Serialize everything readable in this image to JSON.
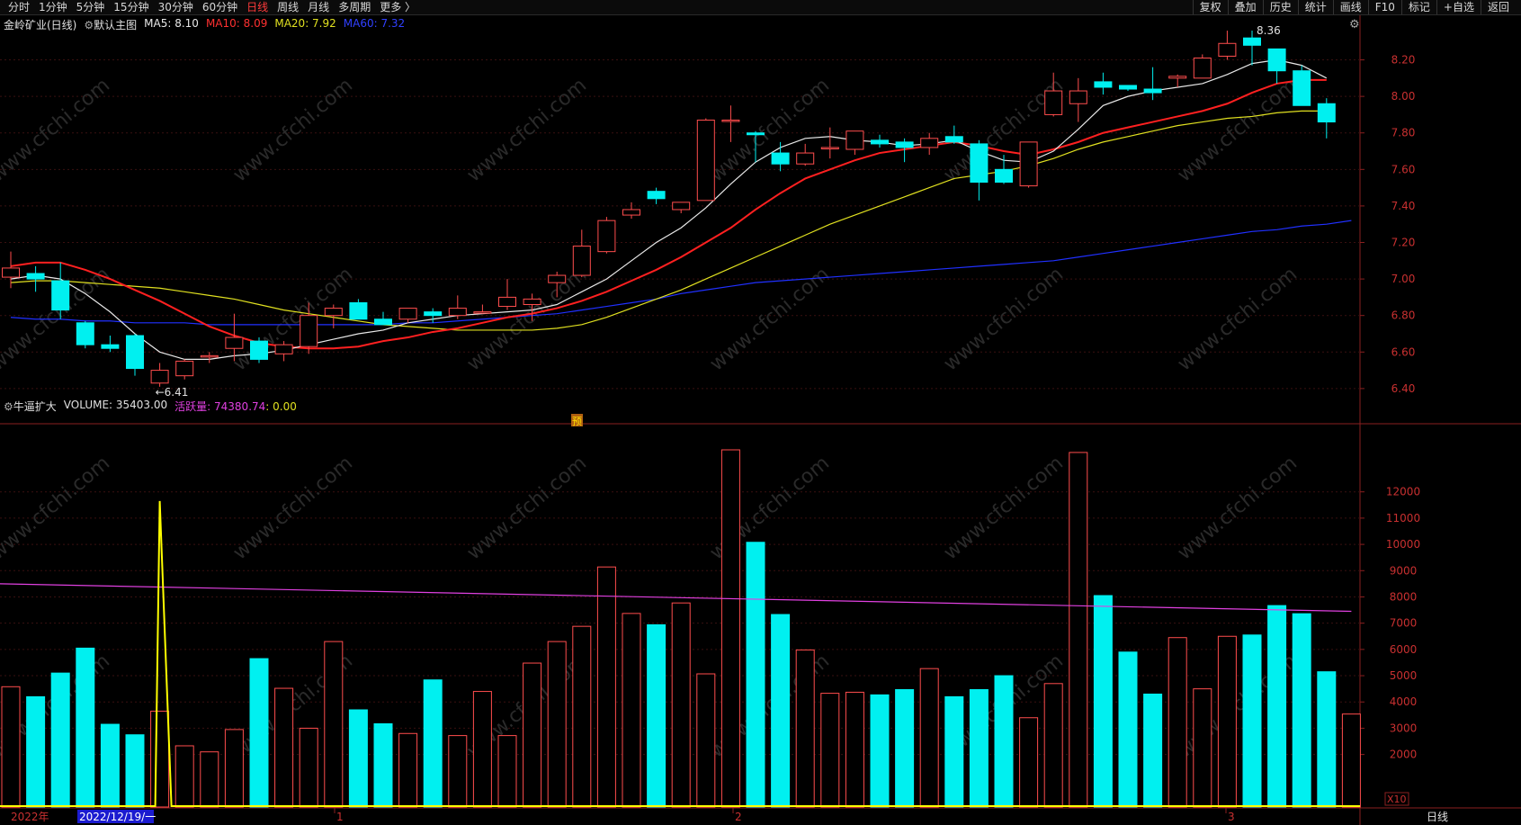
{
  "toolbar": {
    "left_items": [
      "分时",
      "1分钟",
      "5分钟",
      "15分钟",
      "30分钟",
      "60分钟",
      "日线",
      "周线",
      "月线",
      "多周期",
      "更多 〉"
    ],
    "active_index": 6,
    "right_items": [
      "复权",
      "叠加",
      "历史",
      "统计",
      "画线",
      "F10",
      "标记",
      "+自选",
      "返回"
    ]
  },
  "main_legend": {
    "stock": "金岭矿业(日线)",
    "template": "默认主图",
    "ma5": "MA5: 8.10",
    "ma10": "MA10: 8.09",
    "ma20": "MA20: 7.92",
    "ma60": "MA60: 7.32"
  },
  "vol_legend": {
    "indicator": "牛逼扩大",
    "volume": "VOLUME: 35403.00",
    "active": "活跃量: 74380.74",
    "extra": ": 0.00"
  },
  "colors": {
    "up": "#ff4d4d",
    "down": "#00f0f0",
    "ma5": "#e8e8e8",
    "ma10": "#ff2020",
    "ma20": "#e0e020",
    "ma60": "#2030ff",
    "active": "#e040e0",
    "signal": "#ffff00"
  },
  "price_axis": [
    "8.20",
    "8.00",
    "7.80",
    "7.60",
    "7.40",
    "7.20",
    "7.00",
    "6.80",
    "6.60",
    "6.40"
  ],
  "vol_axis": [
    "12000",
    "11000",
    "10000",
    "9000",
    "8000",
    "7000",
    "6000",
    "5000",
    "4000",
    "3000",
    "2000"
  ],
  "vol_unit": "X10",
  "date_labels": {
    "year": "2022年",
    "cursor": "2022/12/19/一",
    "m1": "1",
    "m2": "2",
    "m3": "3"
  },
  "period_label": "日线",
  "annotations": {
    "low": "←6.41",
    "high": "8.36",
    "marker": "预"
  },
  "watermark": "www.cfchi.com",
  "chart_data": {
    "type": "candlestick",
    "candles": [
      {
        "o": 7.01,
        "h": 7.15,
        "l": 6.95,
        "c": 7.06
      },
      {
        "o": 7.03,
        "h": 7.07,
        "l": 6.93,
        "c": 7.0
      },
      {
        "o": 6.99,
        "h": 7.09,
        "l": 6.78,
        "c": 6.83
      },
      {
        "o": 6.76,
        "h": 6.77,
        "l": 6.62,
        "c": 6.64
      },
      {
        "o": 6.64,
        "h": 6.69,
        "l": 6.6,
        "c": 6.62
      },
      {
        "o": 6.69,
        "h": 6.7,
        "l": 6.47,
        "c": 6.51
      },
      {
        "o": 6.43,
        "h": 6.54,
        "l": 6.41,
        "c": 6.5
      },
      {
        "o": 6.47,
        "h": 6.56,
        "l": 6.45,
        "c": 6.55
      },
      {
        "o": 6.58,
        "h": 6.6,
        "l": 6.54,
        "c": 6.58
      },
      {
        "o": 6.62,
        "h": 6.81,
        "l": 6.55,
        "c": 6.68
      },
      {
        "o": 6.66,
        "h": 6.68,
        "l": 6.54,
        "c": 6.56
      },
      {
        "o": 6.59,
        "h": 6.66,
        "l": 6.55,
        "c": 6.64
      },
      {
        "o": 6.63,
        "h": 6.87,
        "l": 6.59,
        "c": 6.8
      },
      {
        "o": 6.8,
        "h": 6.86,
        "l": 6.73,
        "c": 6.84
      },
      {
        "o": 6.87,
        "h": 6.89,
        "l": 6.78,
        "c": 6.78
      },
      {
        "o": 6.78,
        "h": 6.82,
        "l": 6.75,
        "c": 6.75
      },
      {
        "o": 6.78,
        "h": 6.84,
        "l": 6.76,
        "c": 6.84
      },
      {
        "o": 6.82,
        "h": 6.84,
        "l": 6.76,
        "c": 6.8
      },
      {
        "o": 6.8,
        "h": 6.91,
        "l": 6.78,
        "c": 6.84
      },
      {
        "o": 6.82,
        "h": 6.86,
        "l": 6.81,
        "c": 6.82
      },
      {
        "o": 6.85,
        "h": 7.0,
        "l": 6.83,
        "c": 6.9
      },
      {
        "o": 6.86,
        "h": 6.92,
        "l": 6.77,
        "c": 6.89
      },
      {
        "o": 6.98,
        "h": 7.04,
        "l": 6.9,
        "c": 7.02
      },
      {
        "o": 7.02,
        "h": 7.27,
        "l": 7.01,
        "c": 7.18
      },
      {
        "o": 7.15,
        "h": 7.34,
        "l": 7.14,
        "c": 7.32
      },
      {
        "o": 7.35,
        "h": 7.42,
        "l": 7.33,
        "c": 7.38
      },
      {
        "o": 7.48,
        "h": 7.5,
        "l": 7.41,
        "c": 7.44
      },
      {
        "o": 7.38,
        "h": 7.42,
        "l": 7.36,
        "c": 7.42
      },
      {
        "o": 7.43,
        "h": 7.88,
        "l": 7.43,
        "c": 7.87
      },
      {
        "o": 7.87,
        "h": 7.95,
        "l": 7.75,
        "c": 7.87
      },
      {
        "o": 7.8,
        "h": 7.81,
        "l": 7.64,
        "c": 7.79
      },
      {
        "o": 7.69,
        "h": 7.75,
        "l": 7.59,
        "c": 7.63
      },
      {
        "o": 7.63,
        "h": 7.74,
        "l": 7.62,
        "c": 7.69
      },
      {
        "o": 7.72,
        "h": 7.83,
        "l": 7.66,
        "c": 7.72
      },
      {
        "o": 7.71,
        "h": 7.81,
        "l": 7.68,
        "c": 7.81
      },
      {
        "o": 7.76,
        "h": 7.79,
        "l": 7.72,
        "c": 7.74
      },
      {
        "o": 7.75,
        "h": 7.77,
        "l": 7.64,
        "c": 7.72
      },
      {
        "o": 7.72,
        "h": 7.8,
        "l": 7.68,
        "c": 7.77
      },
      {
        "o": 7.78,
        "h": 7.84,
        "l": 7.74,
        "c": 7.75
      },
      {
        "o": 7.74,
        "h": 7.76,
        "l": 7.43,
        "c": 7.53
      },
      {
        "o": 7.6,
        "h": 7.68,
        "l": 7.52,
        "c": 7.53
      },
      {
        "o": 7.51,
        "h": 7.75,
        "l": 7.5,
        "c": 7.75
      },
      {
        "o": 7.9,
        "h": 8.13,
        "l": 7.89,
        "c": 8.03
      },
      {
        "o": 7.96,
        "h": 8.1,
        "l": 7.86,
        "c": 8.03
      },
      {
        "o": 8.08,
        "h": 8.13,
        "l": 8.01,
        "c": 8.05
      },
      {
        "o": 8.06,
        "h": 8.06,
        "l": 8.03,
        "c": 8.04
      },
      {
        "o": 8.04,
        "h": 8.16,
        "l": 7.98,
        "c": 8.02
      },
      {
        "o": 8.1,
        "h": 8.12,
        "l": 8.05,
        "c": 8.11
      },
      {
        "o": 8.1,
        "h": 8.23,
        "l": 8.1,
        "c": 8.21
      },
      {
        "o": 8.22,
        "h": 8.36,
        "l": 8.2,
        "c": 8.29
      },
      {
        "o": 8.32,
        "h": 8.36,
        "l": 8.17,
        "c": 8.28
      },
      {
        "o": 8.26,
        "h": 8.26,
        "l": 8.07,
        "c": 8.14
      },
      {
        "o": 8.14,
        "h": 8.17,
        "l": 7.96,
        "c": 7.95
      },
      {
        "o": 7.96,
        "h": 7.99,
        "l": 7.77,
        "c": 7.86
      }
    ],
    "volumes": [
      4580,
      4200,
      5100,
      6050,
      3150,
      2750,
      3650,
      2330,
      2100,
      2950,
      5650,
      4520,
      3000,
      6300,
      3700,
      3170,
      2800,
      4840,
      2720,
      4400,
      2720,
      5480,
      6300,
      6880,
      9140,
      7370,
      6940,
      7770,
      5070,
      13600,
      10080,
      7330,
      5980,
      4330,
      4370,
      4270,
      4470,
      5270,
      4200,
      4470,
      5000,
      3400,
      4700,
      13500,
      8050,
      5900,
      4300,
      6450,
      4500,
      6500,
      6550,
      7670,
      7360,
      5150,
      3540
    ],
    "active_line": [
      8500,
      7450
    ],
    "signal_peak": {
      "index": 7,
      "value": 11650
    },
    "ma5": [
      7.0,
      7.02,
      7.0,
      6.92,
      6.82,
      6.7,
      6.6,
      6.56,
      6.56,
      6.58,
      6.59,
      6.61,
      6.64,
      6.67,
      6.7,
      6.72,
      6.76,
      6.78,
      6.8,
      6.81,
      6.82,
      6.83,
      6.86,
      6.93,
      7.0,
      7.1,
      7.2,
      7.28,
      7.39,
      7.52,
      7.64,
      7.72,
      7.77,
      7.78,
      7.76,
      7.75,
      7.73,
      7.74,
      7.76,
      7.7,
      7.65,
      7.64,
      7.7,
      7.82,
      7.95,
      8.0,
      8.03,
      8.05,
      8.07,
      8.12,
      8.18,
      8.2,
      8.17,
      8.1
    ],
    "ma10": [
      7.07,
      7.09,
      7.09,
      7.05,
      7.0,
      6.94,
      6.88,
      6.81,
      6.74,
      6.69,
      6.65,
      6.63,
      6.62,
      6.62,
      6.63,
      6.66,
      6.68,
      6.71,
      6.73,
      6.76,
      6.79,
      6.81,
      6.84,
      6.88,
      6.93,
      6.99,
      7.05,
      7.12,
      7.2,
      7.28,
      7.38,
      7.47,
      7.55,
      7.6,
      7.65,
      7.69,
      7.71,
      7.73,
      7.75,
      7.73,
      7.7,
      7.68,
      7.71,
      7.75,
      7.8,
      7.83,
      7.86,
      7.89,
      7.92,
      7.96,
      8.02,
      8.07,
      8.09,
      8.09
    ],
    "ma20": [
      6.98,
      6.99,
      6.99,
      6.98,
      6.97,
      6.96,
      6.95,
      6.93,
      6.91,
      6.89,
      6.86,
      6.83,
      6.81,
      6.79,
      6.77,
      6.75,
      6.74,
      6.73,
      6.72,
      6.72,
      6.72,
      6.72,
      6.73,
      6.75,
      6.79,
      6.84,
      6.89,
      6.94,
      7.0,
      7.06,
      7.12,
      7.18,
      7.24,
      7.3,
      7.35,
      7.4,
      7.45,
      7.5,
      7.55,
      7.57,
      7.59,
      7.62,
      7.66,
      7.71,
      7.75,
      7.78,
      7.81,
      7.84,
      7.86,
      7.88,
      7.89,
      7.91,
      7.92,
      7.92
    ],
    "ma60": [
      6.79,
      6.78,
      6.78,
      6.77,
      6.77,
      6.76,
      6.76,
      6.76,
      6.75,
      6.75,
      6.75,
      6.75,
      6.75,
      6.75,
      6.75,
      6.75,
      6.76,
      6.76,
      6.77,
      6.78,
      6.79,
      6.8,
      6.81,
      6.83,
      6.85,
      6.87,
      6.89,
      6.92,
      6.94,
      6.96,
      6.98,
      6.99,
      7.0,
      7.01,
      7.02,
      7.03,
      7.04,
      7.05,
      7.06,
      7.07,
      7.08,
      7.09,
      7.1,
      7.12,
      7.14,
      7.16,
      7.18,
      7.2,
      7.22,
      7.24,
      7.26,
      7.27,
      7.29,
      7.3,
      7.32
    ],
    "price_range": [
      6.36,
      8.38
    ],
    "volume_range": [
      0,
      13600
    ]
  }
}
